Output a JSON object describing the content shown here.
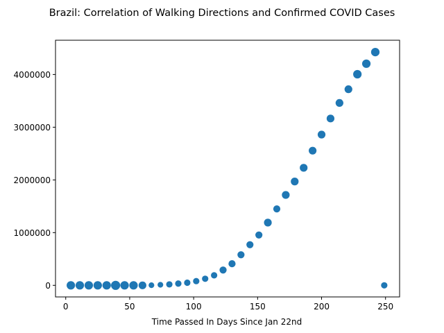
{
  "chart_data": {
    "type": "scatter",
    "title": "Brazil: Correlation of Walking Directions and Confirmed COVID Cases",
    "xlabel": "Time Passed In Days Since Jan 22nd",
    "ylabel": "",
    "xlim": [
      -8,
      261
    ],
    "ylim": [
      -220000,
      4650000
    ],
    "xticks": [
      0,
      50,
      100,
      150,
      200,
      250
    ],
    "yticks": [
      0,
      1000000,
      2000000,
      3000000,
      4000000
    ],
    "grid": false,
    "marker_color": "#1f77b4",
    "points": [
      {
        "x": 4,
        "y": 0,
        "size": 11
      },
      {
        "x": 11,
        "y": 0,
        "size": 11
      },
      {
        "x": 18,
        "y": 0,
        "size": 11
      },
      {
        "x": 25,
        "y": 0,
        "size": 11
      },
      {
        "x": 32,
        "y": 0,
        "size": 11
      },
      {
        "x": 39,
        "y": 0,
        "size": 12
      },
      {
        "x": 46,
        "y": 0,
        "size": 11
      },
      {
        "x": 53,
        "y": 0,
        "size": 11
      },
      {
        "x": 60,
        "y": 0,
        "size": 10
      },
      {
        "x": 67,
        "y": 2000,
        "size": 7
      },
      {
        "x": 74,
        "y": 10000,
        "size": 7
      },
      {
        "x": 81,
        "y": 18000,
        "size": 8
      },
      {
        "x": 88,
        "y": 33000,
        "size": 8
      },
      {
        "x": 95,
        "y": 50000,
        "size": 8
      },
      {
        "x": 102,
        "y": 80000,
        "size": 8
      },
      {
        "x": 109,
        "y": 125000,
        "size": 8
      },
      {
        "x": 116,
        "y": 190000,
        "size": 8
      },
      {
        "x": 123,
        "y": 290000,
        "size": 9
      },
      {
        "x": 130,
        "y": 410000,
        "size": 9
      },
      {
        "x": 137,
        "y": 580000,
        "size": 9
      },
      {
        "x": 144,
        "y": 770000,
        "size": 9
      },
      {
        "x": 151,
        "y": 955000,
        "size": 9
      },
      {
        "x": 158,
        "y": 1190000,
        "size": 10
      },
      {
        "x": 165,
        "y": 1450000,
        "size": 9
      },
      {
        "x": 172,
        "y": 1715000,
        "size": 10
      },
      {
        "x": 179,
        "y": 1970000,
        "size": 10
      },
      {
        "x": 186,
        "y": 2230000,
        "size": 10
      },
      {
        "x": 193,
        "y": 2555000,
        "size": 10
      },
      {
        "x": 200,
        "y": 2860000,
        "size": 10
      },
      {
        "x": 207,
        "y": 3165000,
        "size": 10
      },
      {
        "x": 214,
        "y": 3460000,
        "size": 10
      },
      {
        "x": 221,
        "y": 3720000,
        "size": 10
      },
      {
        "x": 228,
        "y": 4005000,
        "size": 11
      },
      {
        "x": 235,
        "y": 4205000,
        "size": 11
      },
      {
        "x": 242,
        "y": 4425000,
        "size": 11
      },
      {
        "x": 249,
        "y": 0,
        "size": 8
      }
    ]
  }
}
